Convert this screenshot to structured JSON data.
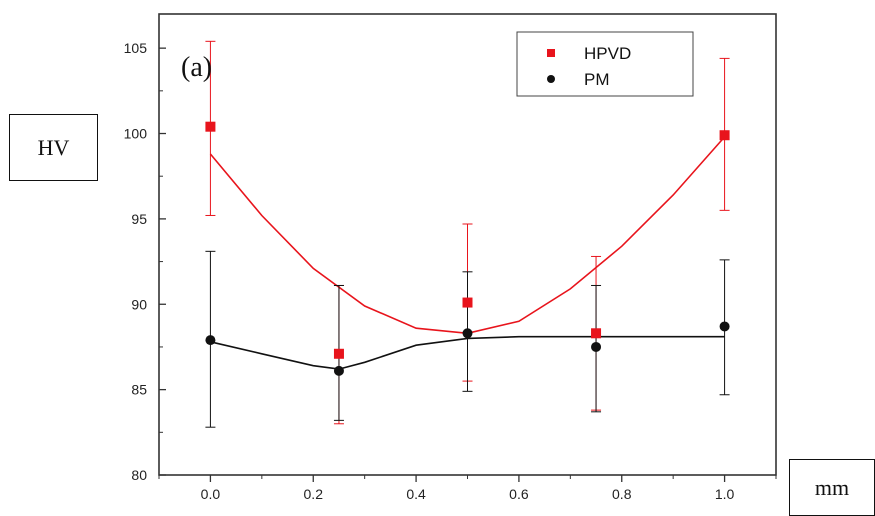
{
  "chart_data": {
    "type": "scatter",
    "panel_label": "(a)",
    "xlabel": "mm",
    "ylabel": "HV",
    "xlim": [
      -0.1,
      1.1
    ],
    "ylim": [
      80,
      107
    ],
    "x_ticks": [
      "0.0",
      "0.2",
      "0.4",
      "0.6",
      "0.8",
      "1.0"
    ],
    "y_ticks": [
      "80",
      "85",
      "90",
      "95",
      "100",
      "105"
    ],
    "legend_position": "top-right",
    "series": [
      {
        "name": "HPVD",
        "color": "#e8141c",
        "marker": "square",
        "x": [
          0.0,
          0.25,
          0.5,
          0.75,
          1.0
        ],
        "y": [
          100.4,
          87.1,
          90.1,
          88.3,
          99.9
        ],
        "err_low": [
          95.2,
          83.0,
          85.5,
          83.8,
          95.5
        ],
        "err_high": [
          105.4,
          91.1,
          94.7,
          92.8,
          104.4
        ],
        "fit": {
          "x": [
            0.0,
            0.1,
            0.2,
            0.3,
            0.4,
            0.5,
            0.6,
            0.7,
            0.8,
            0.9,
            1.0
          ],
          "y": [
            98.8,
            95.2,
            92.1,
            89.9,
            88.6,
            88.3,
            89.0,
            90.9,
            93.4,
            96.4,
            99.8
          ]
        }
      },
      {
        "name": "PM",
        "color": "#111111",
        "marker": "circle",
        "x": [
          0.0,
          0.25,
          0.5,
          0.75,
          1.0
        ],
        "y": [
          87.9,
          86.1,
          88.3,
          87.5,
          88.7
        ],
        "err_low": [
          82.8,
          83.2,
          84.9,
          83.7,
          84.7
        ],
        "err_high": [
          93.1,
          91.1,
          91.9,
          91.1,
          92.6
        ],
        "fit": {
          "x": [
            0.0,
            0.1,
            0.2,
            0.25,
            0.3,
            0.4,
            0.5,
            0.6,
            0.7,
            0.8,
            0.9,
            1.0
          ],
          "y": [
            87.8,
            87.1,
            86.4,
            86.2,
            86.6,
            87.6,
            88.0,
            88.1,
            88.1,
            88.1,
            88.1,
            88.1
          ]
        }
      }
    ]
  }
}
